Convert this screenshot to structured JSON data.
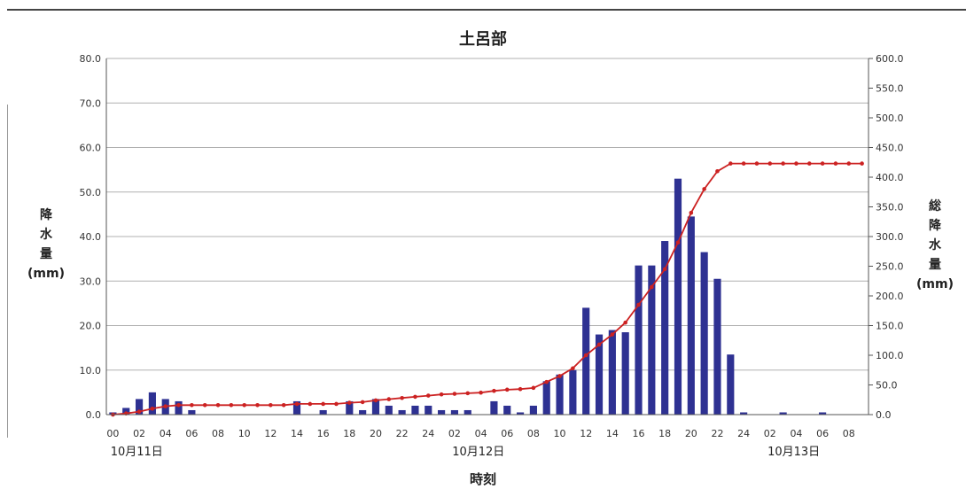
{
  "chart_data": {
    "type": "bar+line",
    "title": "土呂部",
    "xlabel": "時刻",
    "ylabel_left": [
      "降",
      "水",
      "量",
      "(mm)"
    ],
    "ylabel_right": [
      "総",
      "降",
      "水",
      "量",
      "(mm)"
    ],
    "ylim_left": [
      0,
      80
    ],
    "ylim_right": [
      0,
      600
    ],
    "left_ticks": [
      "0.0",
      "10.0",
      "20.0",
      "30.0",
      "40.0",
      "50.0",
      "60.0",
      "70.0",
      "80.0"
    ],
    "right_ticks": [
      "0.0",
      "50.0",
      "100.0",
      "150.0",
      "200.0",
      "250.0",
      "300.0",
      "350.0",
      "400.0",
      "450.0",
      "500.0",
      "550.0",
      "600.0"
    ],
    "x_tick_labels": [
      "00",
      "02",
      "04",
      "06",
      "08",
      "10",
      "12",
      "14",
      "16",
      "18",
      "20",
      "22",
      "24",
      "02",
      "04",
      "06",
      "08",
      "10",
      "12",
      "14",
      "16",
      "18",
      "20",
      "22",
      "24",
      "02",
      "04",
      "06",
      "08"
    ],
    "date_labels": [
      {
        "text": "10月11日",
        "hour": 1
      },
      {
        "text": "10月12日",
        "hour": 27
      },
      {
        "text": "10月13日",
        "hour": 51
      }
    ],
    "series": [
      {
        "name": "降水量",
        "type": "bar",
        "color": "#2e3192",
        "values": [
          0.5,
          1.5,
          3.5,
          5.0,
          3.5,
          3.0,
          1.0,
          0.0,
          0.0,
          0.0,
          0.0,
          0.0,
          0.0,
          0.0,
          3.0,
          0.0,
          1.0,
          0.0,
          3.0,
          1.0,
          3.5,
          2.0,
          1.0,
          2.0,
          2.0,
          1.0,
          1.0,
          1.0,
          0.0,
          3.0,
          2.0,
          0.5,
          2.0,
          7.5,
          9.0,
          10.0,
          24.0,
          18.0,
          19.0,
          18.5,
          33.5,
          33.5,
          39.0,
          53.0,
          44.5,
          36.5,
          30.5,
          13.5,
          0.5,
          0.0,
          0.0,
          0.5,
          0.0,
          0.0,
          0.5,
          0.0,
          0.0,
          0.0
        ]
      },
      {
        "name": "総降水量",
        "type": "line",
        "color": "#cc2222",
        "values": [
          0,
          2,
          5,
          10,
          14,
          16,
          16,
          16,
          16,
          16,
          16,
          16,
          16,
          16,
          18,
          18,
          18,
          18,
          20,
          21,
          24,
          26,
          28,
          30,
          32,
          34,
          35,
          36,
          37,
          40,
          42,
          43,
          45,
          55,
          65,
          78,
          100,
          118,
          135,
          155,
          185,
          215,
          245,
          290,
          340,
          380,
          410,
          423,
          423,
          423,
          423,
          423,
          423,
          423,
          423,
          423,
          423,
          423
        ]
      }
    ],
    "grid": true
  }
}
